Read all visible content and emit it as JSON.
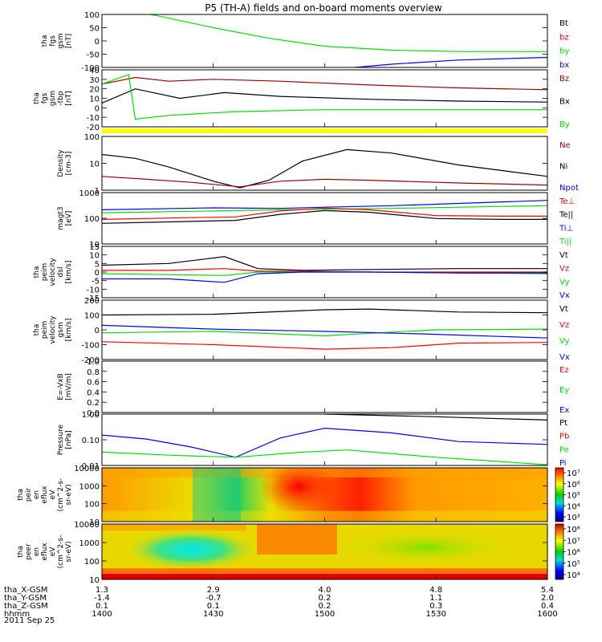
{
  "title": "P5 (TH-A) fields and on-board moments overview",
  "date": "2011 Sep 25",
  "colors": {
    "black": "#000000",
    "red": "#ff0000",
    "darkred": "#a00000",
    "green": "#00e000",
    "blue": "#0000ff",
    "yellow": "#ffff00"
  },
  "chart_data": [
    {
      "type": "line",
      "ylabel": [
        "tha",
        "fgs",
        "gsm",
        "[nT]"
      ],
      "ylim": [
        -100,
        100
      ],
      "yticks": [
        "100",
        "50",
        "0",
        "-50",
        "-100"
      ],
      "legend": [
        {
          "name": "Bt",
          "color": "black"
        },
        {
          "name": "bz",
          "color": "red"
        },
        {
          "name": "by",
          "color": "green"
        },
        {
          "name": "bx",
          "color": "blue"
        }
      ],
      "series": [
        {
          "name": "by",
          "color": "green",
          "x": [
            14.0,
            14.25,
            14.5,
            14.75,
            15.0,
            15.3,
            15.6,
            16.0
          ],
          "y": [
            135,
            95,
            50,
            10,
            -20,
            -35,
            -40,
            -40
          ]
        },
        {
          "name": "bx",
          "color": "blue",
          "x": [
            15.0,
            15.3,
            15.6,
            16.0
          ],
          "y": [
            -110,
            -88,
            -72,
            -62
          ]
        }
      ]
    },
    {
      "type": "line",
      "ylabel": [
        "tha",
        "fgs",
        "gsm",
        "-tbp",
        "[nT]"
      ],
      "ylim": [
        -20,
        40
      ],
      "yticks": [
        "40",
        "30",
        "20",
        "10",
        "0",
        "-10",
        "-20"
      ],
      "legend": [
        {
          "name": "Bz",
          "color": "darkred"
        },
        {
          "name": "Bx",
          "color": "black"
        },
        {
          "name": "By",
          "color": "green"
        }
      ],
      "series": [
        {
          "name": "Bz",
          "color": "darkred",
          "x": [
            14.0,
            14.15,
            14.3,
            14.5,
            14.8,
            15.2,
            15.6,
            16.0
          ],
          "y": [
            25,
            32,
            28,
            30,
            28,
            24,
            21,
            19
          ]
        },
        {
          "name": "Bx",
          "color": "black",
          "x": [
            14.0,
            14.15,
            14.35,
            14.55,
            14.8,
            15.2,
            15.6,
            16.0
          ],
          "y": [
            5,
            20,
            10,
            16,
            12,
            9,
            7,
            6
          ]
        },
        {
          "name": "By",
          "color": "green",
          "x": [
            14.0,
            14.12,
            14.15,
            14.3,
            14.6,
            15.0,
            16.0
          ],
          "y": [
            25,
            35,
            -12,
            -8,
            -4,
            -2,
            -2
          ]
        }
      ]
    },
    {
      "type": "line",
      "ylabel": [
        "Density",
        "[cm-3]"
      ],
      "yscale": "log",
      "ylim": [
        0.7,
        200
      ],
      "yticks": [
        "100",
        "10",
        "1"
      ],
      "legend": [
        {
          "name": "Ne",
          "color": "darkred"
        },
        {
          "name": "Ni",
          "color": "black"
        },
        {
          "name": "Npot",
          "color": "blue"
        }
      ],
      "series": [
        {
          "name": "Ni",
          "color": "black",
          "x": [
            14.0,
            14.15,
            14.3,
            14.5,
            14.62,
            14.75,
            14.9,
            15.1,
            15.3,
            15.6,
            16.0
          ],
          "y": [
            30,
            20,
            8,
            1.8,
            0.9,
            2,
            15,
            50,
            35,
            10,
            3
          ]
        },
        {
          "name": "Ne",
          "color": "darkred",
          "x": [
            14.0,
            14.2,
            14.4,
            14.62,
            14.8,
            15.0,
            15.2,
            15.6,
            16.0
          ],
          "y": [
            3,
            2.2,
            1.6,
            1.0,
            1.8,
            2.2,
            2.0,
            1.5,
            1.2
          ]
        }
      ]
    },
    {
      "type": "line",
      "ylabel": [
        "magt3",
        "[eV]"
      ],
      "yscale": "log",
      "ylim": [
        10,
        1500
      ],
      "yticks": [
        "1000",
        "100",
        "10"
      ],
      "legend": [
        {
          "name": "Te⊥",
          "color": "red"
        },
        {
          "name": "Te||",
          "color": "black"
        },
        {
          "name": "Ti⊥",
          "color": "blue"
        },
        {
          "name": "Ti||",
          "color": "green"
        }
      ],
      "series": [
        {
          "name": "Ti⊥",
          "color": "blue",
          "x": [
            14.0,
            14.5,
            14.8,
            15.0,
            15.3,
            15.6,
            16.0
          ],
          "y": [
            280,
            340,
            320,
            360,
            420,
            520,
            700
          ]
        },
        {
          "name": "Ti||",
          "color": "green",
          "x": [
            14.0,
            14.5,
            14.8,
            15.0,
            15.3,
            15.6,
            16.0
          ],
          "y": [
            210,
            250,
            280,
            300,
            320,
            360,
            420
          ]
        },
        {
          "name": "Te⊥",
          "color": "red",
          "x": [
            14.0,
            14.4,
            14.6,
            14.8,
            15.0,
            15.2,
            15.5,
            15.8,
            16.0
          ],
          "y": [
            110,
            130,
            140,
            250,
            330,
            280,
            160,
            150,
            150
          ]
        },
        {
          "name": "Te||",
          "color": "black",
          "x": [
            14.0,
            14.4,
            14.6,
            14.8,
            15.0,
            15.2,
            15.5,
            15.8,
            16.0
          ],
          "y": [
            75,
            90,
            100,
            180,
            260,
            220,
            120,
            110,
            110
          ]
        }
      ]
    },
    {
      "type": "line",
      "ylabel": [
        "tha",
        "peim",
        "velocity",
        "dsl",
        "[km/s]"
      ],
      "ylim": [
        -15,
        15
      ],
      "yticks": [
        "15",
        "10",
        "5",
        "0",
        "-5",
        "-10",
        "-15"
      ],
      "legend": [
        {
          "name": "Vt",
          "color": "black"
        },
        {
          "name": "Vz",
          "color": "red"
        },
        {
          "name": "Vy",
          "color": "green"
        },
        {
          "name": "Vx",
          "color": "blue"
        }
      ],
      "series": [
        {
          "name": "Vt",
          "color": "black",
          "x": [
            14.0,
            14.3,
            14.55,
            14.7,
            14.9,
            15.2,
            15.6,
            16.0
          ],
          "y": [
            4,
            5,
            9,
            2,
            1,
            1.5,
            2,
            2
          ]
        },
        {
          "name": "Vz",
          "color": "red",
          "x": [
            14.0,
            14.3,
            14.55,
            14.7,
            14.9,
            15.2,
            15.6,
            16.0
          ],
          "y": [
            1,
            1,
            2,
            0.5,
            0.5,
            0,
            0,
            0
          ]
        },
        {
          "name": "Vy",
          "color": "green",
          "x": [
            14.0,
            14.3,
            14.55,
            14.7,
            14.9,
            15.2,
            15.6,
            16.0
          ],
          "y": [
            -1,
            -1.5,
            -2,
            0,
            0,
            0,
            -0.5,
            -1
          ]
        },
        {
          "name": "Vx",
          "color": "blue",
          "x": [
            14.0,
            14.3,
            14.55,
            14.7,
            14.9,
            15.2,
            15.6,
            16.0
          ],
          "y": [
            -4,
            -4,
            -6,
            -1,
            0,
            0,
            -0.5,
            -0.5
          ]
        }
      ]
    },
    {
      "type": "line",
      "ylabel": [
        "tha",
        "peim",
        "velocity",
        "gsm",
        "[km/s]"
      ],
      "ylim": [
        -200,
        200
      ],
      "yticks": [
        "200",
        "100",
        "0",
        "-100",
        "-200"
      ],
      "legend": [
        {
          "name": "Vt",
          "color": "black"
        },
        {
          "name": "Vz",
          "color": "red"
        },
        {
          "name": "Vy",
          "color": "green"
        },
        {
          "name": "Vx",
          "color": "blue"
        }
      ],
      "series": [
        {
          "name": "Vt",
          "color": "black",
          "x": [
            14.0,
            14.5,
            15.0,
            15.2,
            15.6,
            16.0
          ],
          "y": [
            100,
            105,
            135,
            140,
            120,
            115
          ]
        },
        {
          "name": "Vy",
          "color": "green",
          "x": [
            14.0,
            14.5,
            15.0,
            15.5,
            16.0
          ],
          "y": [
            -20,
            -10,
            -40,
            0,
            5
          ]
        },
        {
          "name": "Vx",
          "color": "blue",
          "x": [
            14.0,
            14.5,
            15.0,
            15.5,
            16.0
          ],
          "y": [
            30,
            5,
            -10,
            -30,
            -55
          ]
        },
        {
          "name": "Vz",
          "color": "red",
          "x": [
            14.0,
            14.5,
            15.0,
            15.3,
            15.6,
            16.0
          ],
          "y": [
            -80,
            -100,
            -130,
            -120,
            -90,
            -85
          ]
        }
      ]
    },
    {
      "type": "line",
      "ylabel": [
        "E=-VxB",
        "[mV/m]"
      ],
      "ylim": [
        0,
        1
      ],
      "yticks": [
        "1.0",
        "0.8",
        "0.6",
        "0.4",
        "0.2",
        "0.0"
      ],
      "legend": [
        {
          "name": "Ez",
          "color": "red"
        },
        {
          "name": "Ey",
          "color": "green"
        },
        {
          "name": "Ex",
          "color": "blue"
        }
      ],
      "series": []
    },
    {
      "type": "line",
      "ylabel": [
        "Pressure",
        "[nPa]"
      ],
      "yscale": "log",
      "ylim": [
        0.01,
        10
      ],
      "yticks": [
        "1.00",
        "0.10",
        "0.01"
      ],
      "legend": [
        {
          "name": "Pt",
          "color": "black"
        },
        {
          "name": "Pb",
          "color": "red"
        },
        {
          "name": "Pe",
          "color": "green"
        },
        {
          "name": "Pi",
          "color": "blue"
        }
      ],
      "series": [
        {
          "name": "Pt",
          "color": "black",
          "x": [
            15.0,
            15.5,
            16.0
          ],
          "y": [
            10,
            7,
            4.5
          ]
        },
        {
          "name": "Pi",
          "color": "blue",
          "x": [
            14.0,
            14.2,
            14.4,
            14.6,
            14.8,
            15.0,
            15.3,
            15.6,
            16.0
          ],
          "y": [
            0.6,
            0.35,
            0.12,
            0.03,
            0.4,
            1.5,
            0.8,
            0.25,
            0.17
          ]
        },
        {
          "name": "Pe",
          "color": "green",
          "x": [
            14.0,
            14.3,
            14.6,
            14.9,
            15.1,
            15.5,
            16.0
          ],
          "y": [
            0.06,
            0.04,
            0.03,
            0.06,
            0.08,
            0.03,
            0.011
          ]
        }
      ]
    },
    {
      "type": "heatmap",
      "ylabel": [
        "tha",
        "peir",
        "en",
        "eflux",
        "eV",
        "(cm^2-s-",
        "sr-eV)"
      ],
      "yscale": "log",
      "ylim": [
        7,
        20000
      ],
      "yticks": [
        "10000",
        "1000",
        "100",
        "10"
      ],
      "colorbar": {
        "ticks": [
          "10⁷",
          "10⁶",
          "10⁵",
          "10⁴",
          "10³"
        ]
      }
    },
    {
      "type": "heatmap",
      "ylabel": [
        "tha",
        "peer",
        "en",
        "eflux",
        "eV",
        "(cm^2-s-",
        "sr-eV)"
      ],
      "yscale": "log",
      "ylim": [
        7,
        20000
      ],
      "yticks": [
        "10000",
        "1000",
        "100",
        "10"
      ],
      "colorbar": {
        "ticks": [
          "10⁸",
          "10⁷",
          "10⁶",
          "10⁵",
          "10⁴"
        ]
      }
    }
  ],
  "x_axis": {
    "xlim": [
      14.0,
      16.0
    ],
    "rows": [
      {
        "label": "tha_X-GSM",
        "values": [
          "1.3",
          "2.9",
          "4.0",
          "4.8",
          "5.4"
        ]
      },
      {
        "label": "tha_Y-GSM",
        "values": [
          "-1.4",
          "-0.7",
          "0.2",
          "1.1",
          "2.0"
        ]
      },
      {
        "label": "tha_Z-GSM",
        "values": [
          "0.1",
          "0.1",
          "0.2",
          "0.3",
          "0.4"
        ]
      },
      {
        "label": "hhmm",
        "values": [
          "1400",
          "1430",
          "1500",
          "1530",
          "1600"
        ]
      }
    ],
    "tick_x": [
      14.0,
      14.5,
      15.0,
      15.5,
      16.0
    ]
  }
}
